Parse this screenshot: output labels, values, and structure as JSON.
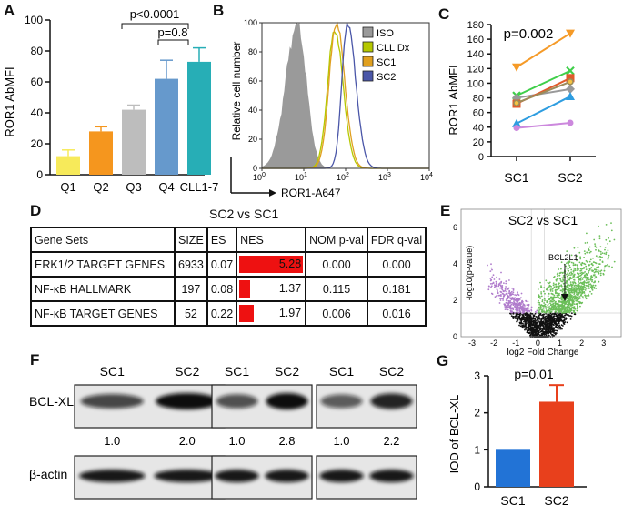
{
  "panels": {
    "A": {
      "letter": "A",
      "ylabel": "ROR1 AbMFI",
      "yticks": [
        "0",
        "20",
        "40",
        "60",
        "80",
        "100"
      ],
      "sig1": "p<0.0001",
      "sig2": "p=0.8"
    },
    "B": {
      "letter": "B",
      "ylabel": "Relative cell number",
      "xlabel": "ROR1-A647",
      "yticks": [
        "0",
        "20",
        "40",
        "60",
        "80",
        "100"
      ],
      "xticks": [
        {
          "b": "10",
          "e": "0"
        },
        {
          "b": "10",
          "e": "1"
        },
        {
          "b": "10",
          "e": "2"
        },
        {
          "b": "10",
          "e": "3"
        },
        {
          "b": "10",
          "e": "4"
        }
      ]
    },
    "C": {
      "letter": "C",
      "ylabel": "ROR1 AbMFI",
      "pval": "p=0.002",
      "yticks": [
        "0",
        "20",
        "40",
        "60",
        "80",
        "100",
        "120",
        "140",
        "160",
        "180"
      ]
    },
    "D": {
      "letter": "D",
      "title": "SC2 vs SC1"
    },
    "E": {
      "letter": "E",
      "title": "SC2 vs SC1",
      "xlabel": "log2 Fold Change",
      "ylabel": "-log10(p-value)",
      "annotation": "BCL2L1",
      "xticks": [
        "-3",
        "-2",
        "-1",
        "0",
        "1",
        "2",
        "3"
      ],
      "yticks": [
        "0",
        "2",
        "4",
        "6"
      ]
    },
    "F": {
      "letter": "F",
      "row1": "BCL-XL",
      "row2": "β-actin",
      "blots": [
        {
          "labels": [
            "SC1",
            "SC2"
          ],
          "quant": [
            "1.0",
            "2.0"
          ]
        },
        {
          "labels": [
            "SC1",
            "SC2"
          ],
          "quant": [
            "1.0",
            "2.8"
          ]
        },
        {
          "labels": [
            "SC1",
            "SC2"
          ],
          "quant": [
            "1.0",
            "2.2"
          ]
        }
      ]
    },
    "G": {
      "letter": "G",
      "ylabel": "IOD of BCL-XL",
      "pval": "p=0.01",
      "yticks": [
        "0",
        "1",
        "2",
        "3"
      ]
    }
  },
  "table": {
    "headers": [
      "Gene Sets",
      "SIZE",
      "ES",
      "NES",
      "NOM p-val",
      "FDR q-val"
    ],
    "rows": [
      {
        "gene_set": "ERK1/2 TARGET GENES",
        "size": "6933",
        "es": "0.07",
        "nes": "5.28",
        "nes_value": 5.28,
        "nom": "0.000",
        "fdr": "0.000"
      },
      {
        "gene_set": "NF-κB HALLMARK",
        "size": "197",
        "es": "0.08",
        "nes": "1.37",
        "nes_value": 1.37,
        "nom": "0.115",
        "fdr": "0.181"
      },
      {
        "gene_set": "NF-κB TARGET GENES",
        "size": "52",
        "es": "0.22",
        "nes": "1.97",
        "nes_value": 1.97,
        "nom": "0.006",
        "fdr": "0.016"
      }
    ]
  },
  "chart_data": [
    {
      "panel": "A",
      "type": "bar",
      "categories": [
        "Q1",
        "Q2",
        "Q3",
        "Q4",
        "CLL1-7"
      ],
      "values": [
        12,
        28,
        42,
        62,
        73
      ],
      "errors": [
        4,
        3,
        3,
        12,
        9
      ],
      "colors": [
        "#f7ea5a",
        "#f5961e",
        "#bdbdbd",
        "#6699cc",
        "#27aeb6"
      ],
      "ylabel": "ROR1 AbMFI",
      "ylim": [
        0,
        100
      ]
    },
    {
      "panel": "B",
      "type": "line",
      "xscale": "log",
      "xlim": [
        1,
        10000
      ],
      "ylim": [
        0,
        100
      ],
      "xlabel": "ROR1-A647",
      "ylabel": "Relative cell number",
      "legend": {
        "position": "top-right"
      },
      "series": [
        {
          "name": "ISO",
          "color": "#9a9a9a",
          "fill": true,
          "peak_x": 7,
          "peak_y": 100
        },
        {
          "name": "CLL Dx",
          "color": "#b5c800",
          "peak_x": 55,
          "peak_y": 95
        },
        {
          "name": "SC1",
          "color": "#e0a020",
          "peak_x": 60,
          "peak_y": 100
        },
        {
          "name": "SC2",
          "color": "#4a56a8",
          "peak_x": 110,
          "peak_y": 100
        }
      ]
    },
    {
      "panel": "C",
      "type": "line",
      "categories": [
        "SC1",
        "SC2"
      ],
      "ylim": [
        0,
        180
      ],
      "ylabel": "ROR1 AbMFI",
      "series": [
        {
          "color": "#f59a27",
          "values": [
            122,
            168
          ]
        },
        {
          "color": "#3fcf4a",
          "values": [
            83,
            117
          ]
        },
        {
          "color": "#999999",
          "values": [
            80,
            92
          ]
        },
        {
          "color": "#e05b2b",
          "values": [
            72,
            107
          ]
        },
        {
          "color": "#9c8c5a",
          "values": [
            73,
            102
          ]
        },
        {
          "color": "#2e9de0",
          "values": [
            45,
            82
          ]
        },
        {
          "color": "#cc88dd",
          "values": [
            39,
            46
          ]
        }
      ]
    },
    {
      "panel": "E",
      "type": "scatter",
      "xlim": [
        -3.5,
        3.8
      ],
      "ylim": [
        0,
        7
      ],
      "xlabel": "log2 Fold Change",
      "ylabel": "-log10(p-value)",
      "threshold_y": 1.3,
      "threshold_x": [
        -0.3,
        0.3
      ],
      "colors": {
        "up": "#6cbf5a",
        "down": "#b07ccc",
        "ns": "#111111"
      },
      "annotation": {
        "text": "BCL2L1",
        "x": 1.2,
        "y": 1.7
      }
    },
    {
      "panel": "G",
      "type": "bar",
      "categories": [
        "SC1",
        "SC2"
      ],
      "values": [
        1.0,
        2.3
      ],
      "errors": [
        0,
        0.45
      ],
      "colors": [
        "#2273d6",
        "#e8401c"
      ],
      "ylabel": "IOD of BCL-XL",
      "ylim": [
        0,
        3
      ]
    }
  ]
}
